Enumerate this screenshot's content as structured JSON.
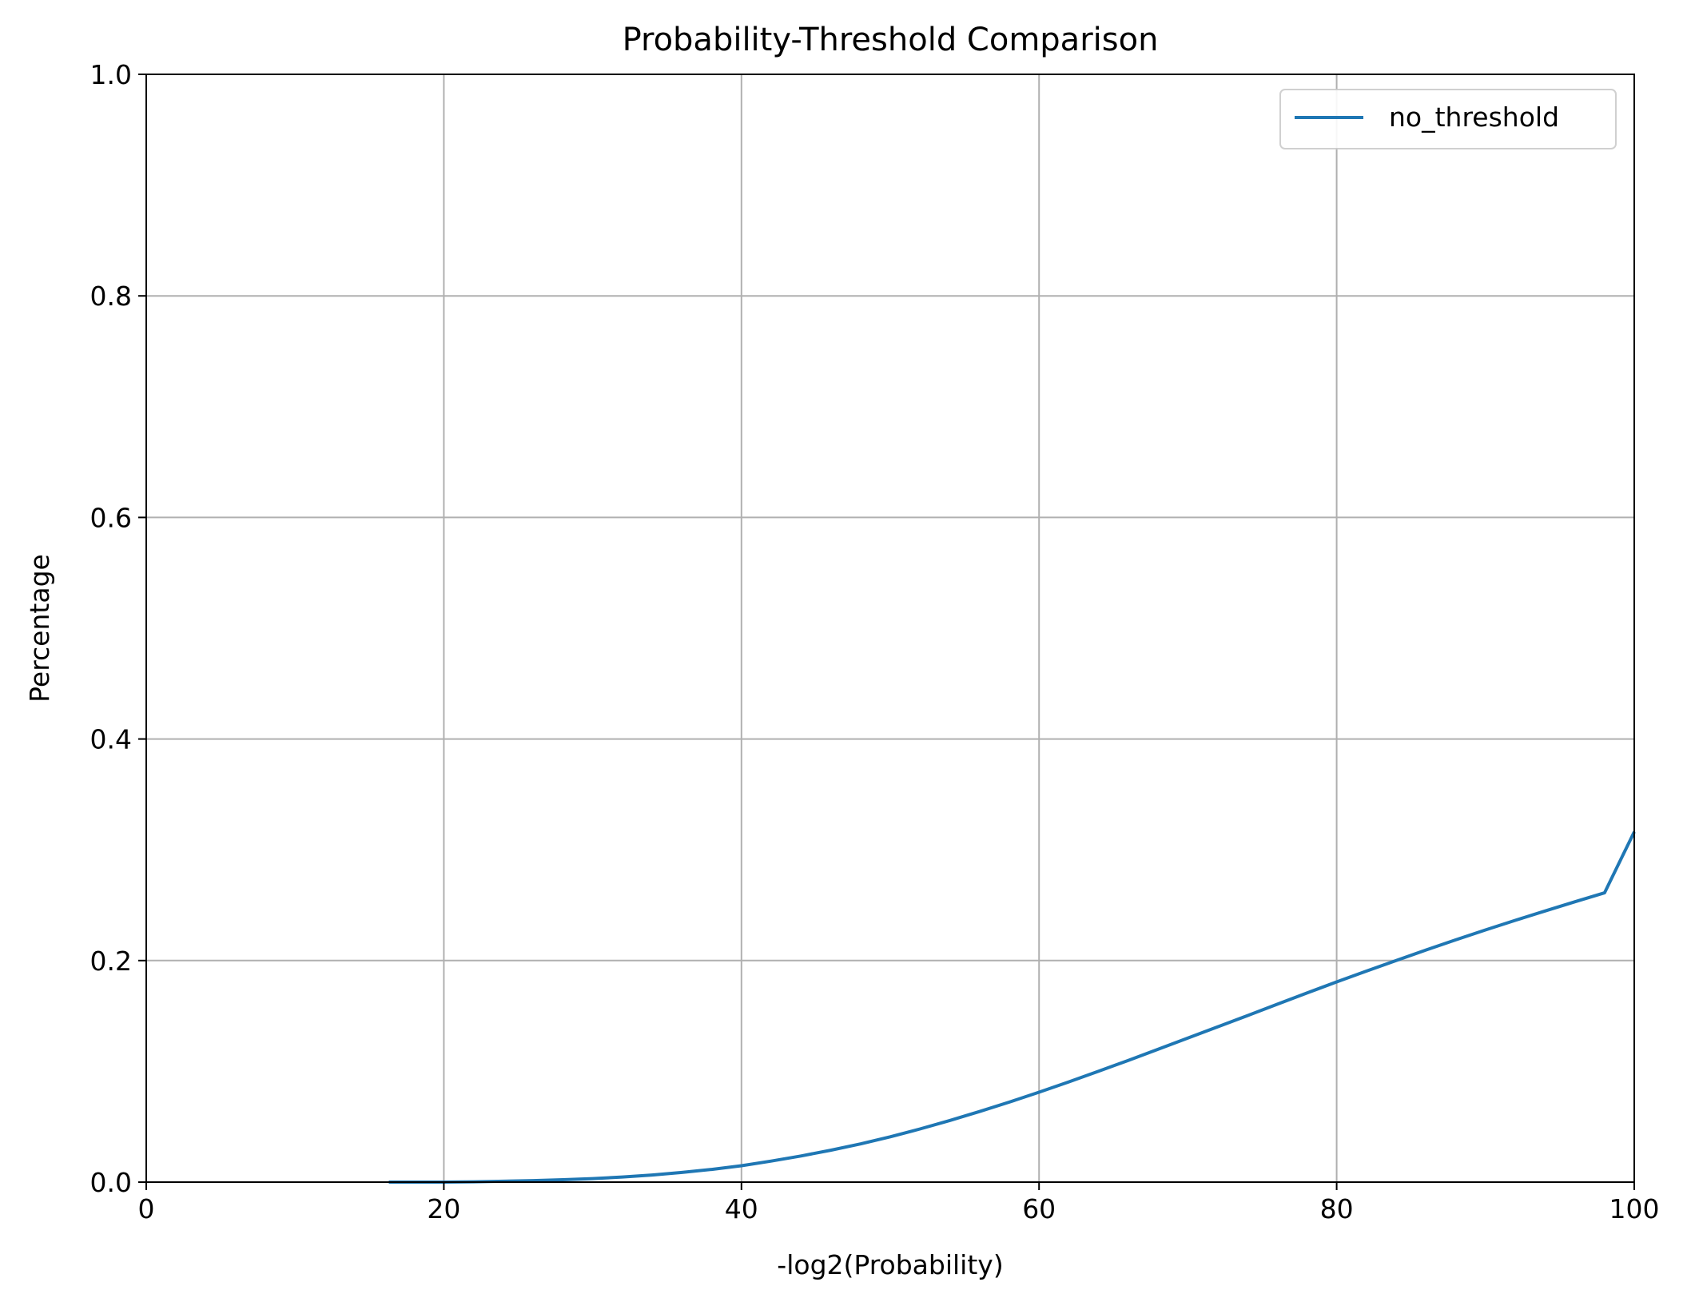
{
  "chart_data": {
    "type": "line",
    "title": "Probability-Threshold Comparison",
    "xlabel": "-log2(Probability)",
    "ylabel": "Percentage",
    "xlim": [
      0,
      100
    ],
    "ylim": [
      0,
      1.0
    ],
    "xticks": [
      "0",
      "20",
      "40",
      "60",
      "80",
      "100"
    ],
    "yticks": [
      "0.0",
      "0.2",
      "0.4",
      "0.6",
      "0.8",
      "1.0"
    ],
    "grid": true,
    "legend_position": "top-right",
    "series": [
      {
        "name": "no_threshold",
        "color": "#1f77b4",
        "x": [
          16.3,
          18,
          20,
          22,
          24,
          26,
          28,
          30,
          32,
          34,
          36,
          38,
          40,
          42,
          44,
          46,
          48,
          50,
          52,
          54,
          56,
          58,
          60,
          62,
          64,
          66,
          68,
          70,
          72,
          74,
          76,
          78,
          80,
          82,
          84,
          86,
          88,
          90,
          92,
          94,
          96,
          98,
          100
        ],
        "y": [
          0.0,
          0.0,
          0.0,
          0.0003,
          0.0008,
          0.0014,
          0.0022,
          0.0032,
          0.0046,
          0.0064,
          0.0087,
          0.0115,
          0.0148,
          0.019,
          0.0236,
          0.0288,
          0.0345,
          0.0409,
          0.048,
          0.0556,
          0.0637,
          0.0722,
          0.0812,
          0.0905,
          0.1001,
          0.1099,
          0.1199,
          0.13,
          0.1401,
          0.1503,
          0.1605,
          0.1707,
          0.1807,
          0.1905,
          0.2001,
          0.2095,
          0.2187,
          0.2276,
          0.2363,
          0.2447,
          0.253,
          0.2611,
          0.3162
        ]
      }
    ]
  }
}
